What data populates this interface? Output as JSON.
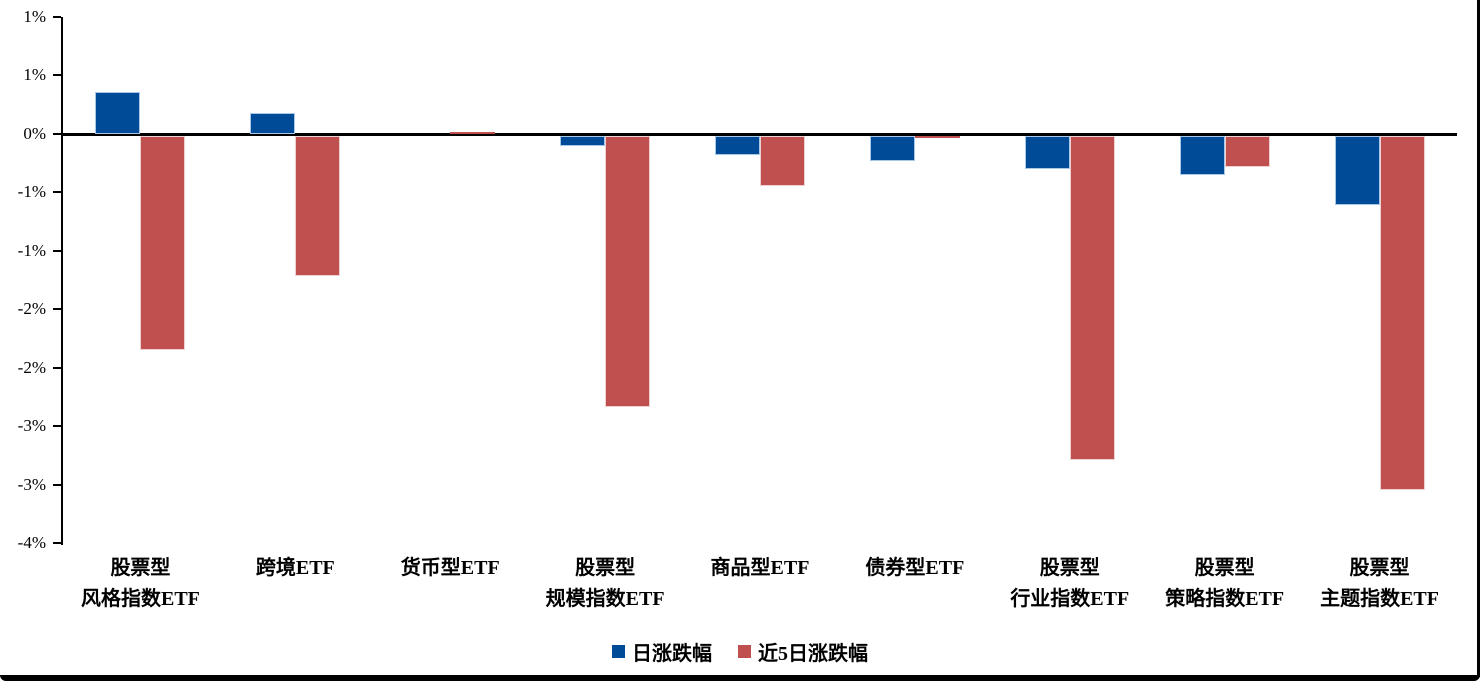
{
  "chart_data": {
    "type": "bar",
    "title": "",
    "xlabel": "",
    "ylabel": "",
    "unit": "percent",
    "grid": false,
    "legend_position": "bottom",
    "ylim": [
      -3.5,
      1.0
    ],
    "ytick_step": 0.5,
    "ytick_labels": [
      "1%",
      "1%",
      "0%",
      "-1%",
      "-1%",
      "-2%",
      "-2%",
      "-3%",
      "-3%",
      "-4%"
    ],
    "categories": [
      [
        "股票型",
        "风格指数ETF"
      ],
      [
        "跨境ETF"
      ],
      [
        "货币型ETF"
      ],
      [
        "股票型",
        "规模指数ETF"
      ],
      [
        "商品型ETF"
      ],
      [
        "债券型ETF"
      ],
      [
        "股票型",
        "行业指数ETF"
      ],
      [
        "股票型",
        "策略指数ETF"
      ],
      [
        "股票型",
        "主题指数ETF"
      ]
    ],
    "series": [
      {
        "name": "日涨跌幅",
        "color": "#004B97",
        "border_color": "#A9C7E8",
        "values": [
          0.36,
          0.18,
          0.0,
          -0.1,
          -0.18,
          -0.23,
          -0.3,
          -0.35,
          -0.61
        ]
      },
      {
        "name": "近5日涨跌幅",
        "color": "#BF504F",
        "border_color": "#EDD2D1",
        "values": [
          -1.85,
          -1.22,
          0.02,
          -2.34,
          -0.45,
          -0.02,
          -2.79,
          -0.28,
          -3.05
        ]
      }
    ]
  }
}
